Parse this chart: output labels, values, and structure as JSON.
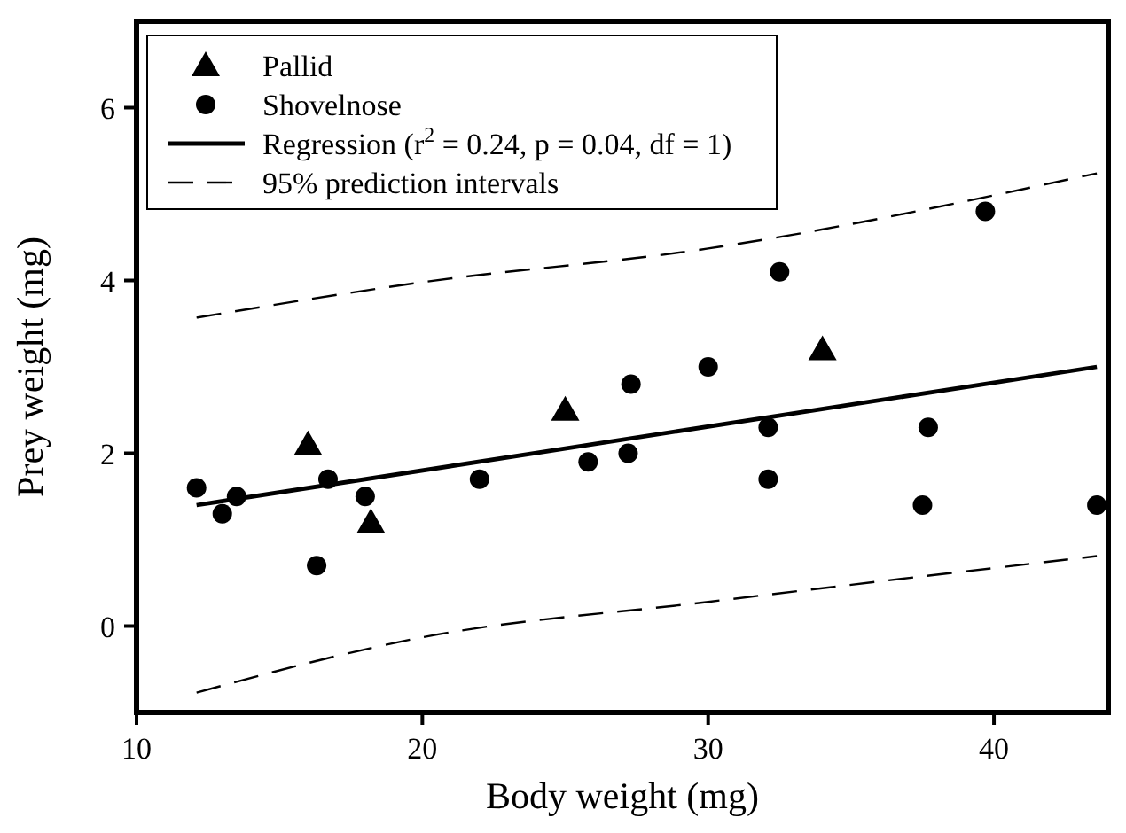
{
  "chart_data": {
    "type": "scatter",
    "xlabel": "Body weight (mg)",
    "ylabel": "Prey weight (mg)",
    "xlim": [
      10,
      44
    ],
    "ylim": [
      -1,
      7
    ],
    "xticks": [
      10,
      20,
      30,
      40
    ],
    "yticks": [
      0,
      2,
      4,
      6
    ],
    "grid": false,
    "legend": "top left",
    "series": [
      {
        "name": "Pallid",
        "color": "#000000",
        "marker": "triangle",
        "x": [
          16,
          18.2,
          25,
          34
        ],
        "values": [
          2.1,
          1.2,
          2.5,
          3.2
        ]
      },
      {
        "name": "Shovelnose",
        "color": "#000000",
        "marker": "circle",
        "x": [
          12.1,
          13,
          13.5,
          16.3,
          16.7,
          18,
          22,
          25.8,
          27.2,
          27.3,
          30,
          32.1,
          32.1,
          32.5,
          37.5,
          37.7,
          39.7,
          43.6
        ],
        "values": [
          1.6,
          1.3,
          1.5,
          0.7,
          1.7,
          1.5,
          1.7,
          1.9,
          2.0,
          2.8,
          3.0,
          2.3,
          1.7,
          4.1,
          1.4,
          2.3,
          4.8,
          1.4
        ]
      },
      {
        "name": "Regression (r$^{2}$ = 0.24, p = 0.04, df = 1)",
        "type": "line",
        "color": "#000000",
        "marker": "none",
        "line_style": "solid",
        "x": [
          12.1,
          43.6
        ],
        "values": [
          1.4,
          3.0
        ]
      },
      {
        "name": "95% prediction intervals",
        "type": "line",
        "color": "#000000",
        "marker": "none",
        "line_style": "dashed",
        "x": [
          12.1,
          20,
          30,
          43.6
        ],
        "values": [
          3.57,
          3.98,
          4.37,
          5.24
        ]
      },
      {
        "type": "line",
        "color": "#000000",
        "marker": "none",
        "line_style": "dashed",
        "x": [
          12.1,
          20,
          30,
          43.6
        ],
        "values": [
          -0.77,
          -0.13,
          0.28,
          0.81
        ]
      }
    ]
  }
}
